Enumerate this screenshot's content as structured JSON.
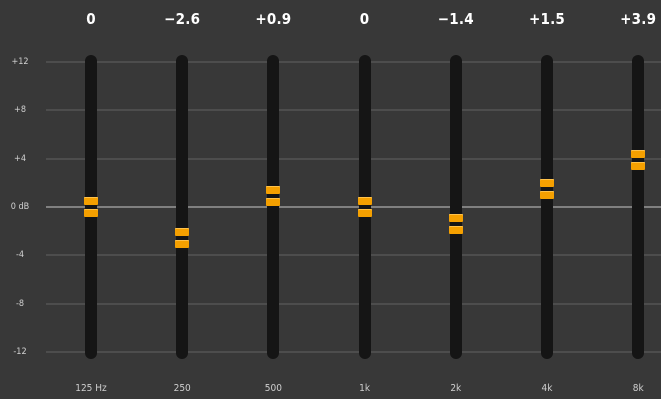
{
  "scale": {
    "max_db": 12,
    "min_db": -12,
    "labels": [
      {
        "db": 12,
        "text": "+12"
      },
      {
        "db": 8,
        "text": "+8"
      },
      {
        "db": 4,
        "text": "+4"
      },
      {
        "db": 0,
        "text": "0 dB"
      },
      {
        "db": -4,
        "text": "-4"
      },
      {
        "db": -8,
        "text": "-8"
      },
      {
        "db": -12,
        "text": "-12"
      }
    ]
  },
  "bands": [
    {
      "freq": "125 Hz",
      "value_label": "0",
      "gain_db": 0
    },
    {
      "freq": "250",
      "value_label": "−2.6",
      "gain_db": -2.6
    },
    {
      "freq": "500",
      "value_label": "+0.9",
      "gain_db": 0.9
    },
    {
      "freq": "1k",
      "value_label": "0",
      "gain_db": 0
    },
    {
      "freq": "2k",
      "value_label": "−1.4",
      "gain_db": -1.4
    },
    {
      "freq": "4k",
      "value_label": "+1.5",
      "gain_db": 1.5
    },
    {
      "freq": "8k",
      "value_label": "+3.9",
      "gain_db": 3.9
    }
  ],
  "colors": {
    "background": "#383838",
    "track": "#151515",
    "thumb": "#f5a000",
    "zero_line": "#808080",
    "grid_line": "#4d4d4d"
  }
}
